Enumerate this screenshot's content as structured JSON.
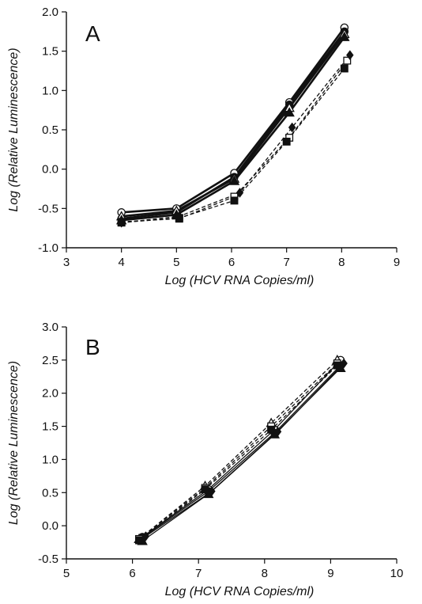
{
  "chart_data": [
    {
      "type": "line",
      "panel_label": "A",
      "xlabel": "Log (HCV RNA Copies/ml)",
      "ylabel": "Log (Relative Luminescence)",
      "xlim": [
        3,
        9
      ],
      "ylim": [
        -1.0,
        2.0
      ],
      "xticks": [
        "3",
        "4",
        "5",
        "6",
        "7",
        "8",
        "9"
      ],
      "yticks": [
        "-1.0",
        "-0.5",
        "0.0",
        "0.5",
        "1.0",
        "1.5",
        "2.0"
      ],
      "grid": false,
      "legend": "none",
      "series": [
        {
          "marker": "circle-open",
          "line": "solid",
          "x": [
            4,
            5,
            6.05,
            7.05,
            8.05
          ],
          "y": [
            -0.55,
            -0.5,
            -0.05,
            0.85,
            1.8
          ]
        },
        {
          "marker": "circle-filled",
          "line": "solid",
          "x": [
            4,
            5,
            6.05,
            7.05,
            8.05
          ],
          "y": [
            -0.63,
            -0.55,
            -0.1,
            0.82,
            1.75
          ]
        },
        {
          "marker": "triangle-open",
          "line": "solid",
          "x": [
            4,
            5,
            6.05,
            7.05,
            8.05
          ],
          "y": [
            -0.6,
            -0.53,
            -0.12,
            0.78,
            1.72
          ]
        },
        {
          "marker": "triangle-filled",
          "line": "solid",
          "x": [
            4,
            5,
            6.05,
            7.05,
            8.05
          ],
          "y": [
            -0.65,
            -0.58,
            -0.15,
            0.72,
            1.68
          ]
        },
        {
          "marker": "square-open",
          "line": "dashed",
          "x": [
            4,
            5.05,
            6.05,
            7.05,
            8.1
          ],
          "y": [
            -0.67,
            -0.63,
            -0.35,
            0.4,
            1.38
          ]
        },
        {
          "marker": "square-filled",
          "line": "dashed",
          "x": [
            4,
            5.05,
            6.05,
            7.0,
            8.05
          ],
          "y": [
            -0.68,
            -0.62,
            -0.4,
            0.35,
            1.28
          ]
        },
        {
          "marker": "diamond-filled",
          "line": "dashed",
          "x": [
            4,
            5.05,
            6.15,
            7.1,
            8.15
          ],
          "y": [
            -0.68,
            -0.6,
            -0.3,
            0.53,
            1.45
          ]
        }
      ]
    },
    {
      "type": "line",
      "panel_label": "B",
      "xlabel": "Log (HCV RNA Copies/ml)",
      "ylabel": "Log (Relative Luminescence)",
      "xlim": [
        5,
        10
      ],
      "ylim": [
        -0.5,
        3.0
      ],
      "xticks": [
        "5",
        "6",
        "7",
        "8",
        "9",
        "10"
      ],
      "yticks": [
        "-0.5",
        "0.0",
        "0.5",
        "1.0",
        "1.5",
        "2.0",
        "2.5",
        "3.0"
      ],
      "grid": false,
      "legend": "none",
      "series": [
        {
          "marker": "circle-open",
          "line": "solid",
          "x": [
            6.15,
            7.15,
            8.15,
            9.15
          ],
          "y": [
            -0.17,
            0.55,
            1.45,
            2.5
          ]
        },
        {
          "marker": "circle-filled",
          "line": "solid",
          "x": [
            6.15,
            7.15,
            8.15,
            9.15
          ],
          "y": [
            -0.18,
            0.52,
            1.4,
            2.42
          ]
        },
        {
          "marker": "triangle-open",
          "line": "dashed",
          "x": [
            6.1,
            7.1,
            8.1,
            9.1
          ],
          "y": [
            -0.2,
            0.6,
            1.55,
            2.5
          ]
        },
        {
          "marker": "triangle-filled",
          "line": "solid",
          "x": [
            6.15,
            7.15,
            8.15,
            9.15
          ],
          "y": [
            -0.23,
            0.48,
            1.38,
            2.38
          ]
        },
        {
          "marker": "square-open",
          "line": "dashed",
          "x": [
            6.1,
            7.1,
            8.1,
            9.1
          ],
          "y": [
            -0.2,
            0.57,
            1.5,
            2.45
          ]
        },
        {
          "marker": "square-filled",
          "line": "dashed",
          "x": [
            6.1,
            7.1,
            8.1,
            9.1
          ],
          "y": [
            -0.22,
            0.55,
            1.45,
            2.42
          ]
        },
        {
          "marker": "diamond-filled",
          "line": "solid",
          "x": [
            6.2,
            7.2,
            8.2,
            9.2
          ],
          "y": [
            -0.16,
            0.52,
            1.42,
            2.45
          ]
        }
      ]
    }
  ]
}
